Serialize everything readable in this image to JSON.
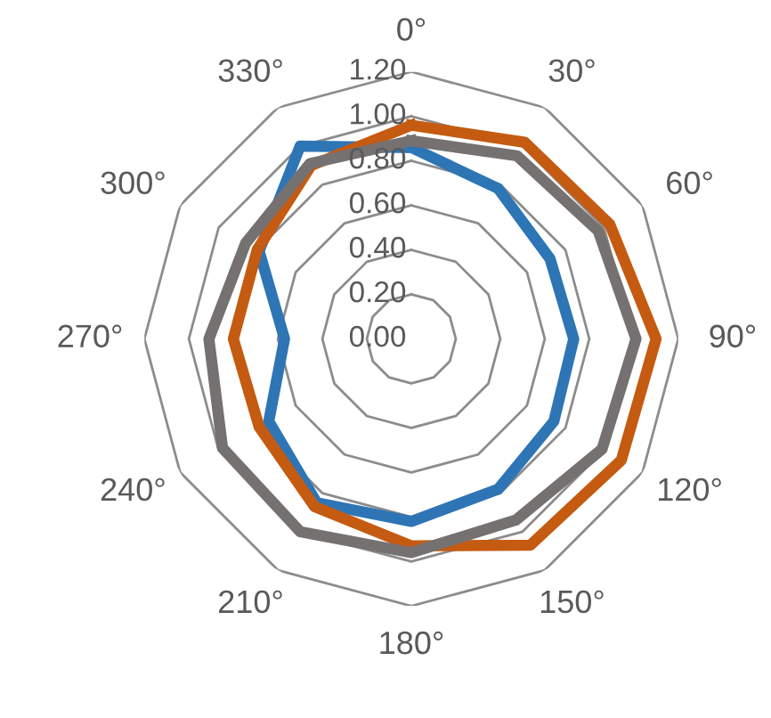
{
  "chart_data": {
    "type": "radar",
    "categories": [
      "0°",
      "30°",
      "60°",
      "90°",
      "120°",
      "150°",
      "180°",
      "210°",
      "240°",
      "270°",
      "300°",
      "330°"
    ],
    "ylim": [
      0,
      1.2
    ],
    "yticks": [
      {
        "value": 0,
        "label": "0.00"
      },
      {
        "value": 0.2,
        "label": "0.20"
      },
      {
        "value": 0.4,
        "label": "0.40"
      },
      {
        "value": 0.6,
        "label": "0.60"
      },
      {
        "value": 0.8,
        "label": "0.80"
      },
      {
        "value": 1.0,
        "label": "1.00"
      },
      {
        "value": 1.2,
        "label": "1.20"
      }
    ],
    "grid": true,
    "legend": false,
    "marker": "none",
    "line_style": "solid",
    "series": [
      {
        "color": "#2e75b6",
        "values": [
          0.86,
          0.78,
          0.72,
          0.73,
          0.74,
          0.78,
          0.82,
          0.85,
          0.74,
          0.57,
          0.79,
          1.0
        ]
      },
      {
        "color": "#c55a11",
        "values": [
          0.96,
          1.02,
          1.03,
          1.1,
          1.09,
          1.07,
          0.93,
          0.87,
          0.79,
          0.8,
          0.8,
          0.9
        ]
      },
      {
        "color": "#767171",
        "values": [
          0.89,
          0.95,
          0.97,
          1.01,
          0.99,
          0.94,
          0.96,
          1.0,
          0.98,
          0.91,
          0.86,
          0.91
        ]
      }
    ]
  }
}
